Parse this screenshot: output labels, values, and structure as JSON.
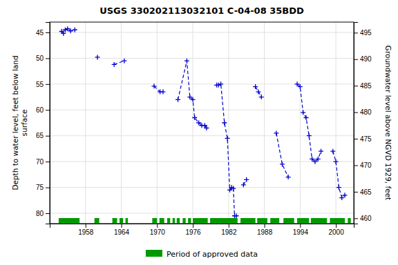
{
  "chart_data": {
    "type": "line",
    "title": "USGS 330202113032101 C-04-08 35BDD",
    "ylabel": "Depth to water level, feet below land\n surface",
    "y2label": "Groundwater level above NGVD 1929, feet",
    "xlim": [
      1952,
      2003
    ],
    "xticks": [
      1958,
      1964,
      1970,
      1976,
      1982,
      1988,
      1994,
      2000
    ],
    "ylim": [
      82,
      43
    ],
    "yticks": [
      45,
      50,
      55,
      60,
      65,
      70,
      75,
      80
    ],
    "y2lim": [
      459,
      497
    ],
    "y2ticks": [
      495,
      490,
      485,
      480,
      475,
      470,
      465,
      460
    ],
    "grid": true,
    "legend": "bottom",
    "color": "#0000cc",
    "marker": "plus",
    "line_style": "dashed",
    "series": [
      {
        "x": [
          1954.0,
          1954.3,
          1954.6,
          1955.0,
          1955.5,
          1956.2
        ],
        "values": [
          44.8,
          45.2,
          44.5,
          44.3,
          44.7,
          44.5
        ]
      },
      {
        "x": [
          1960.0
        ],
        "values": [
          49.8
        ]
      },
      {
        "x": [
          1962.8,
          1964.5
        ],
        "values": [
          51.2,
          50.5
        ]
      },
      {
        "x": [
          1969.5,
          1970.5,
          1971.0
        ],
        "values": [
          55.4,
          56.5,
          56.5
        ]
      },
      {
        "x": [
          1973.5,
          1975.0,
          1975.5,
          1976.0,
          1976.3,
          1977.0,
          1977.5,
          1978.0,
          1978.3
        ],
        "values": [
          58.0,
          50.5,
          57.5,
          58.0,
          61.5,
          62.5,
          63.0,
          63.0,
          63.5
        ]
      },
      {
        "x": [
          1980.0,
          1980.3,
          1980.7,
          1981.3,
          1981.8,
          1982.2,
          1982.5,
          1982.8,
          1983.0,
          1983.3
        ],
        "values": [
          55.2,
          55.2,
          55.0,
          62.5,
          65.5,
          75.5,
          75.0,
          75.2,
          80.5,
          80.5
        ]
      },
      {
        "x": [
          1984.5,
          1985.0
        ],
        "values": [
          74.5,
          73.5
        ]
      },
      {
        "x": [
          1986.5,
          1987.0,
          1987.5
        ],
        "values": [
          55.5,
          56.5,
          57.5
        ]
      },
      {
        "x": [
          1990.0,
          1991.0,
          1992.0
        ],
        "values": [
          64.5,
          70.5,
          73.0
        ]
      },
      {
        "x": [
          1993.5,
          1994.0,
          1994.5,
          1995.0,
          1995.5,
          1996.0,
          1996.5,
          1997.0,
          1997.5
        ],
        "values": [
          55.0,
          55.5,
          60.5,
          61.5,
          65.0,
          69.5,
          70.0,
          69.5,
          68.0
        ]
      },
      {
        "x": [
          1999.5,
          2000.0,
          2000.5,
          2001.0,
          2001.5
        ],
        "values": [
          68.0,
          70.0,
          75.0,
          77.0,
          76.5
        ]
      },
      {
        "name": "Period of approved data",
        "type": "span",
        "color": "#009900",
        "segments": [
          [
            1953.5,
            1957.0
          ],
          [
            1959.5,
            1960.3
          ],
          [
            1962.5,
            1963.3
          ],
          [
            1963.7,
            1964.3
          ],
          [
            1964.7,
            1965.1
          ],
          [
            1969.2,
            1970.0
          ],
          [
            1970.4,
            1971.2
          ],
          [
            1971.7,
            1972.2
          ],
          [
            1972.6,
            1973.0
          ],
          [
            1973.3,
            1973.8
          ],
          [
            1974.3,
            1974.8
          ],
          [
            1975.2,
            1975.7
          ],
          [
            1976.0,
            1978.5
          ],
          [
            1978.9,
            1983.5
          ],
          [
            1984.0,
            1986.5
          ],
          [
            1986.8,
            1988.5
          ],
          [
            1989.0,
            1990.5
          ],
          [
            1991.2,
            1993.0
          ],
          [
            1993.5,
            1995.5
          ],
          [
            1995.8,
            1998.5
          ],
          [
            1999.0,
            2001.5
          ],
          [
            2002.0,
            2002.5
          ]
        ]
      }
    ]
  }
}
